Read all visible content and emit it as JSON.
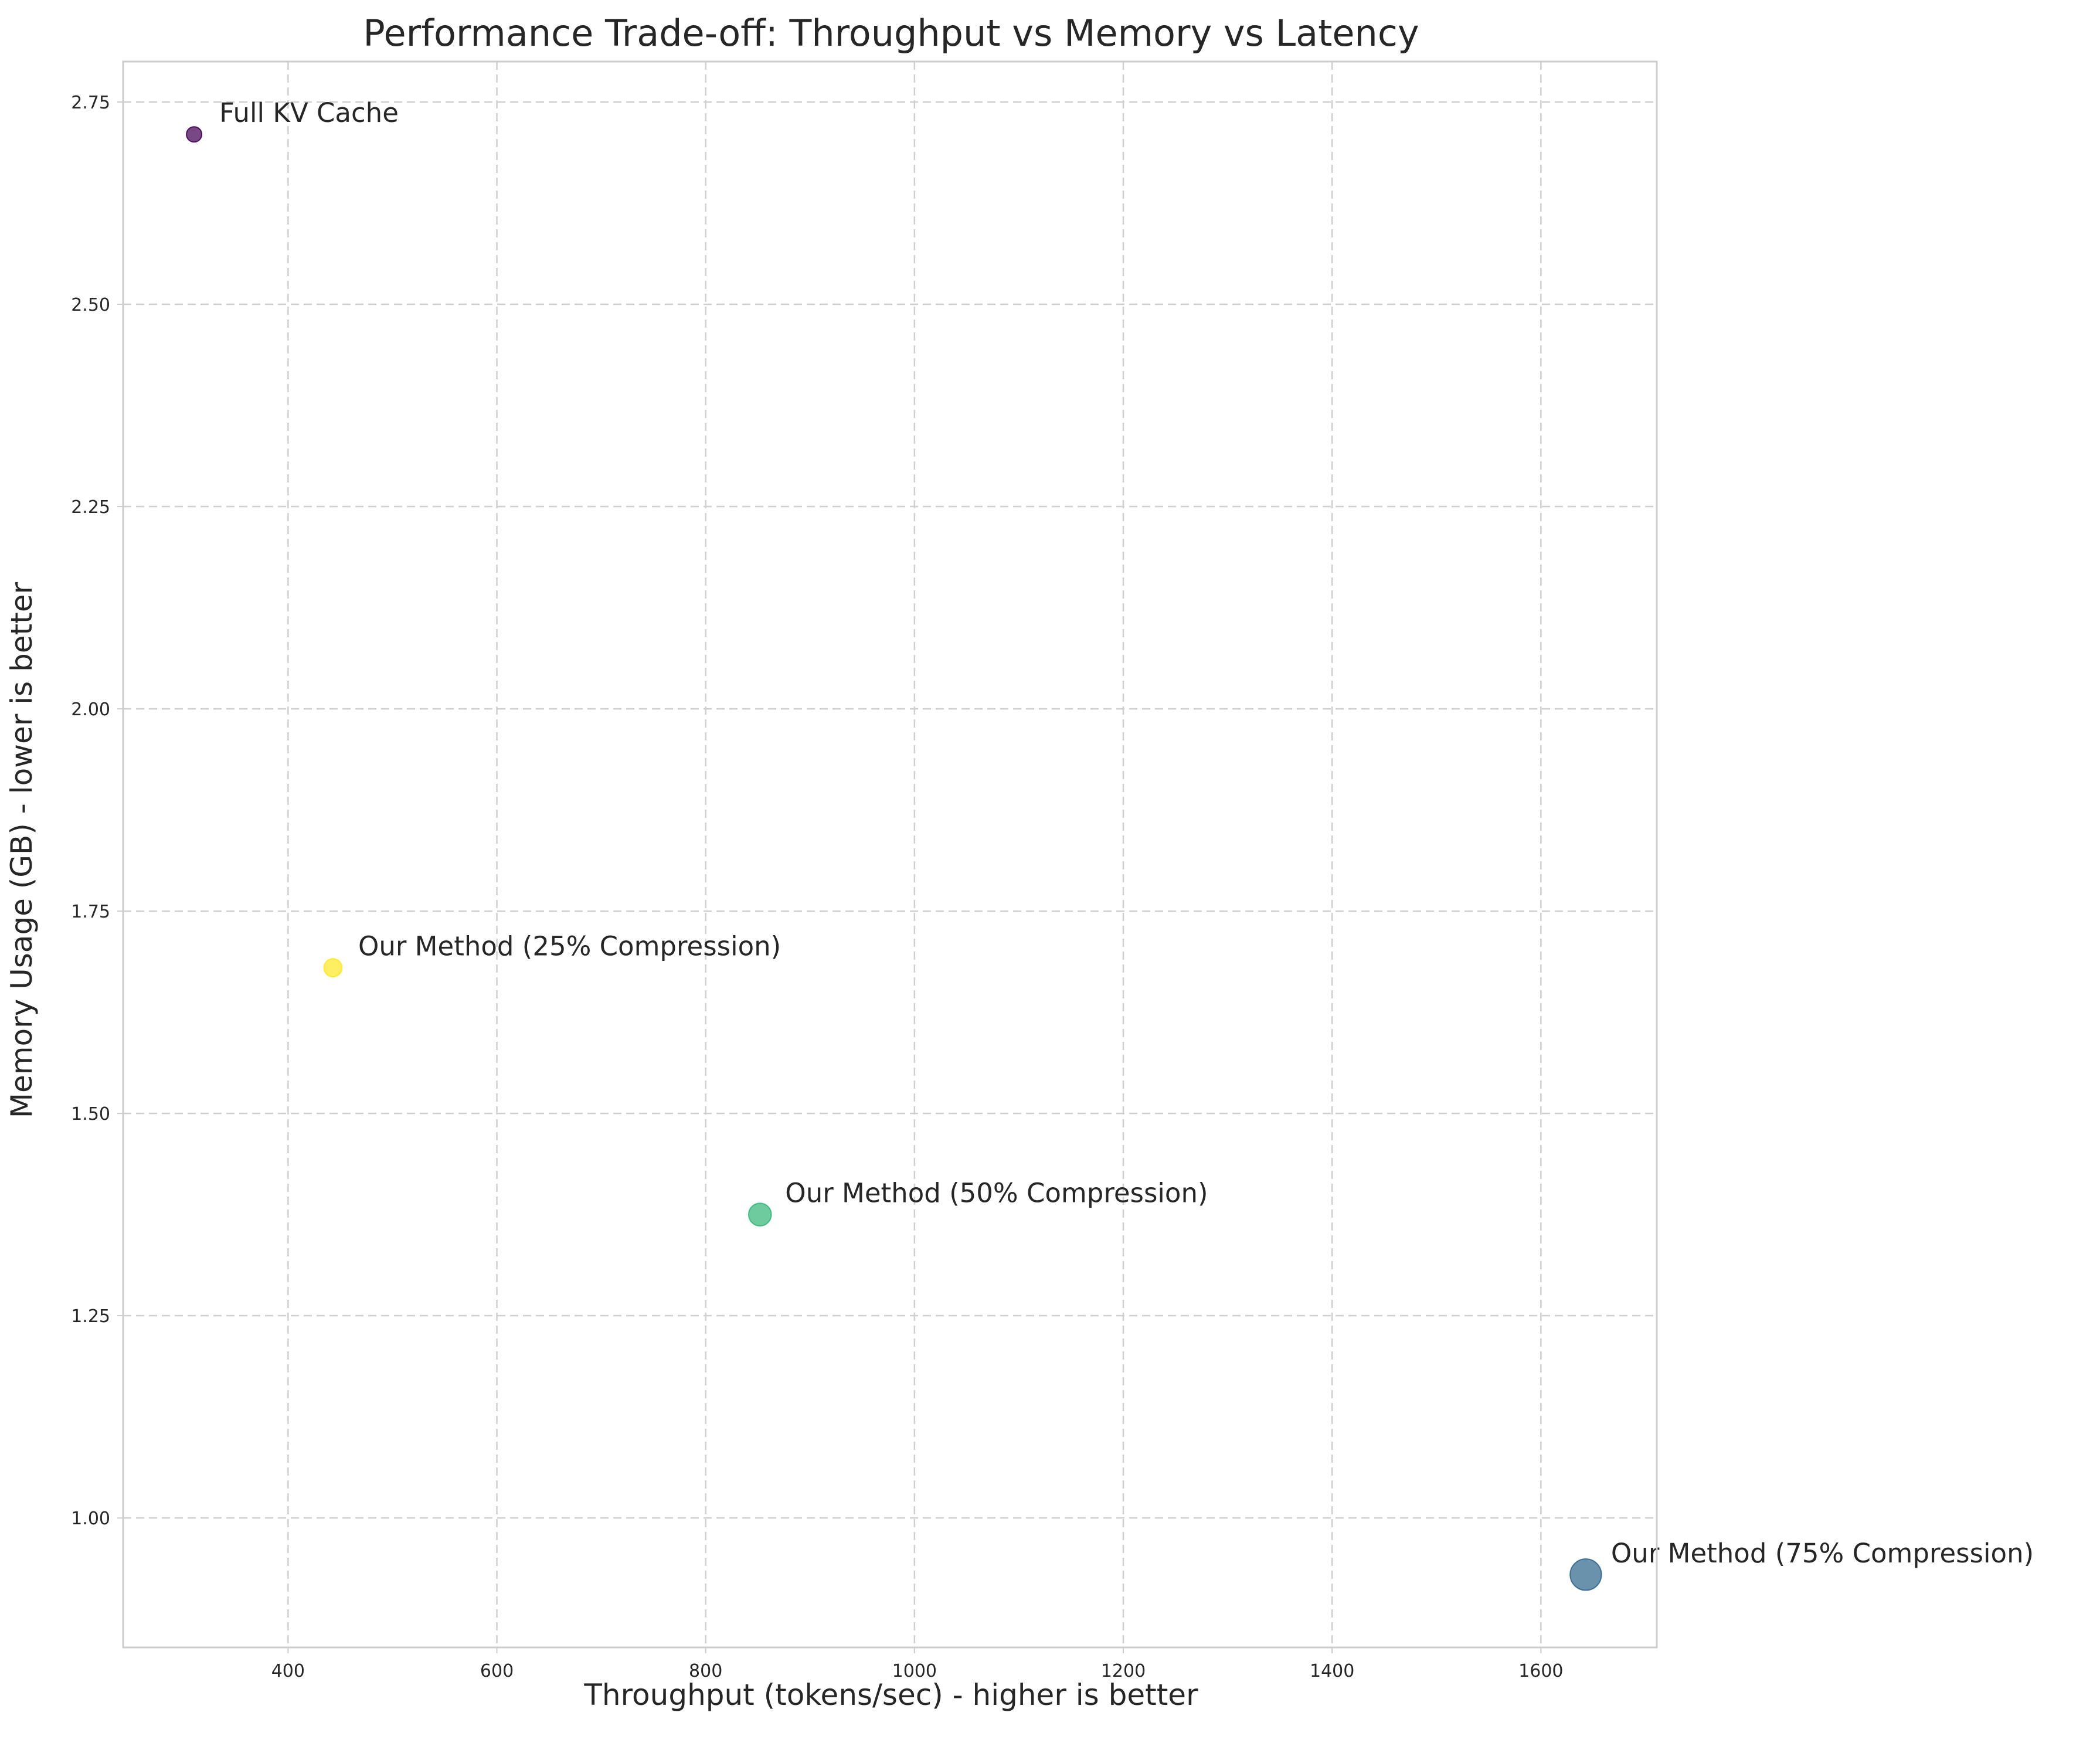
{
  "chart_data": {
    "type": "scatter",
    "title": "Performance Trade-off: Throughput vs Memory vs Latency",
    "xlabel": "Throughput (tokens/sec) - higher is better",
    "ylabel": "Memory Usage (GB) - lower is better",
    "xlim": [
      242,
      1711
    ],
    "ylim": [
      0.84,
      2.8
    ],
    "xticks": [
      400,
      600,
      800,
      1000,
      1200,
      1400,
      1600
    ],
    "xtick_labels": [
      "400",
      "600",
      "800",
      "1000",
      "1200",
      "1400",
      "1600"
    ],
    "yticks": [
      1.0,
      1.25,
      1.5,
      1.75,
      2.0,
      2.25,
      2.5,
      2.75
    ],
    "ytick_labels": [
      "1.00",
      "1.25",
      "1.50",
      "1.75",
      "2.00",
      "2.25",
      "2.50",
      "2.75"
    ],
    "grid": true,
    "legend": "none",
    "points": [
      {
        "label": "Full KV Cache",
        "x": 310,
        "y": 2.71,
        "relative_size": 1.0,
        "color": "#440154"
      },
      {
        "label": "Our Method (25% Compression)",
        "x": 443,
        "y": 1.68,
        "relative_size": 1.4,
        "color": "#fde725"
      },
      {
        "label": "Our Method (50% Compression)",
        "x": 852,
        "y": 1.375,
        "relative_size": 2.2,
        "color": "#35b779"
      },
      {
        "label": "Our Method (75% Compression)",
        "x": 1643,
        "y": 0.93,
        "relative_size": 4.2,
        "color": "#31688e"
      }
    ]
  }
}
